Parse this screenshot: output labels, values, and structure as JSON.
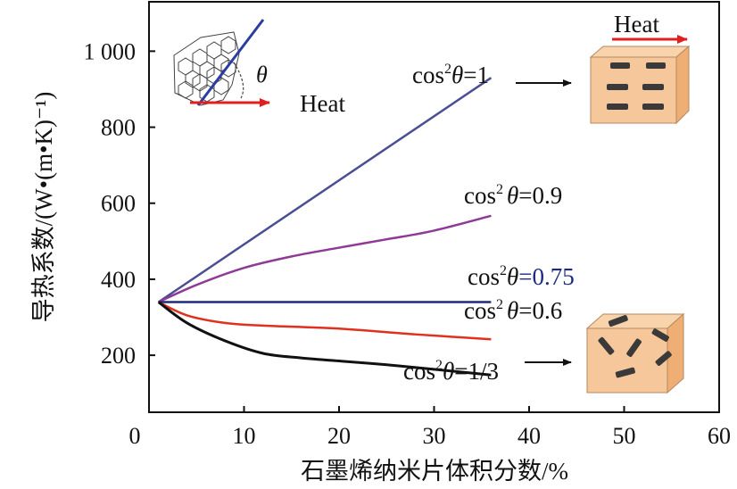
{
  "chart_data": {
    "type": "line",
    "xlabel": "石墨烯纳米片体积分数/%",
    "ylabel": "导热系数/(W•(m•K)⁻¹)",
    "xlim": [
      0,
      60
    ],
    "ylim": [
      50,
      1130
    ],
    "x_ticks": [
      "0",
      "10",
      "20",
      "30",
      "40",
      "50",
      "60"
    ],
    "y_ticks": [
      "200",
      "400",
      "600",
      "800",
      "1 000"
    ],
    "x_tick_values": [
      0,
      10,
      20,
      30,
      40,
      50,
      60
    ],
    "y_tick_values": [
      200,
      400,
      600,
      800,
      1000
    ],
    "series": [
      {
        "label_prefix": "cos",
        "label_sup": "2",
        "label_theta": "θ",
        "label_value": "=1",
        "color": "#4a4e94",
        "points": [
          [
            1,
            340
          ],
          [
            36,
            930
          ]
        ]
      },
      {
        "label_prefix": "cos",
        "label_sup": "2",
        "label_theta": "θ",
        "label_value": "=0.9",
        "color": "#8e3a96",
        "points": [
          [
            1,
            340
          ],
          [
            5,
            385
          ],
          [
            10,
            430
          ],
          [
            15,
            460
          ],
          [
            20,
            483
          ],
          [
            25,
            505
          ],
          [
            30,
            528
          ],
          [
            36,
            567
          ]
        ]
      },
      {
        "label_prefix": "cos",
        "label_sup": "2",
        "label_theta": "θ",
        "label_value": "=0.75",
        "color": "#1c2a80",
        "value_color": "#1c2a80",
        "points": [
          [
            1,
            340
          ],
          [
            36,
            340
          ]
        ]
      },
      {
        "label_prefix": "cos",
        "label_sup": "2",
        "label_theta": "θ",
        "label_value": "=0.6",
        "color": "#e0301e",
        "points": [
          [
            1,
            340
          ],
          [
            4,
            305
          ],
          [
            8,
            285
          ],
          [
            12,
            278
          ],
          [
            20,
            270
          ],
          [
            28,
            255
          ],
          [
            36,
            242
          ]
        ]
      },
      {
        "label_prefix": "cos",
        "label_sup": "2",
        "label_theta": "θ",
        "label_value": "=1/3",
        "color": "#111111",
        "points": [
          [
            1,
            340
          ],
          [
            4,
            285
          ],
          [
            8,
            238
          ],
          [
            12,
            205
          ],
          [
            16,
            193
          ],
          [
            20,
            185
          ],
          [
            25,
            175
          ],
          [
            30,
            163
          ],
          [
            36,
            148
          ]
        ]
      }
    ]
  },
  "insets": {
    "heat_label_inset": "Heat",
    "theta_label": "θ",
    "heat_label_top": "Heat"
  },
  "colors": {
    "arrow_red": "#e0201e",
    "box_face": "#f6c79a",
    "box_side": "#eeae74",
    "flake": "#3a3a3a"
  }
}
